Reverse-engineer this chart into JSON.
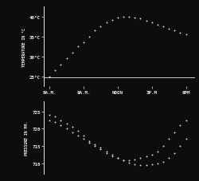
{
  "background_color": "#0d0d0d",
  "text_color": "#e8e8e8",
  "dot_color": "#d8d8d8",
  "temp_ylabel": "TEMPERATURE IN °C",
  "pressure_ylabel": "PRESSURE IN MM.",
  "x_labels": [
    "6A.M.",
    "9A.M.",
    "NOON",
    "3P.M",
    "6PM"
  ],
  "x_hours": [
    6,
    9,
    12,
    15,
    18
  ],
  "temp_yticks": [
    25,
    30,
    35,
    40
  ],
  "temp_ylabels": [
    "25°C",
    "30°C",
    "35°C",
    "40°C"
  ],
  "temp_ylim": [
    22.5,
    42.5
  ],
  "pressure_yticks": [
    710,
    715,
    720,
    725
  ],
  "pressure_ylabels": [
    "710",
    "715",
    "720",
    "725"
  ],
  "pressure_ylim": [
    707,
    728
  ],
  "temp_x": [
    6.0,
    6.5,
    7.0,
    7.5,
    8.0,
    8.5,
    9.0,
    9.5,
    10.0,
    10.5,
    11.0,
    11.5,
    12.0,
    12.5,
    13.0,
    13.5,
    14.0,
    14.5,
    15.0,
    15.5,
    16.0,
    16.5,
    17.0,
    17.5,
    18.0
  ],
  "temp_y": [
    25.0,
    26.5,
    28.0,
    29.5,
    31.0,
    32.5,
    33.5,
    35.0,
    36.5,
    37.5,
    38.5,
    39.2,
    39.8,
    40.0,
    40.0,
    39.8,
    39.5,
    39.0,
    38.5,
    38.0,
    37.5,
    37.0,
    36.5,
    36.0,
    35.5
  ],
  "pressure_outer_x": [
    6.0,
    6.5,
    7.0,
    7.5,
    8.0,
    8.5,
    9.0,
    9.5,
    10.0,
    10.5,
    11.0,
    11.5,
    12.0,
    12.5,
    13.0,
    13.5,
    14.0,
    14.5,
    15.0,
    15.5,
    16.0,
    16.5,
    17.0,
    17.5,
    18.0
  ],
  "pressure_outer_y": [
    724.0,
    723.5,
    722.5,
    721.5,
    720.5,
    719.5,
    718.0,
    716.5,
    715.5,
    714.5,
    713.5,
    712.5,
    711.5,
    710.8,
    710.2,
    709.8,
    709.5,
    709.5,
    709.8,
    710.0,
    710.5,
    711.5,
    713.0,
    715.0,
    717.0
  ],
  "pressure_inner_x": [
    6.0,
    6.5,
    7.0,
    7.5,
    8.0,
    8.5,
    9.0,
    9.5,
    10.0,
    10.5,
    11.0,
    11.5,
    12.0,
    12.5,
    13.0,
    13.5,
    14.0,
    14.5,
    15.0,
    15.5,
    16.0,
    16.5,
    17.0,
    17.5,
    18.0
  ],
  "pressure_inner_y": [
    722.5,
    722.0,
    721.0,
    720.0,
    719.0,
    718.0,
    717.0,
    716.0,
    715.0,
    714.0,
    713.0,
    712.0,
    711.5,
    711.0,
    711.0,
    711.2,
    711.5,
    712.0,
    712.5,
    713.5,
    715.0,
    717.0,
    719.0,
    721.0,
    722.5
  ]
}
